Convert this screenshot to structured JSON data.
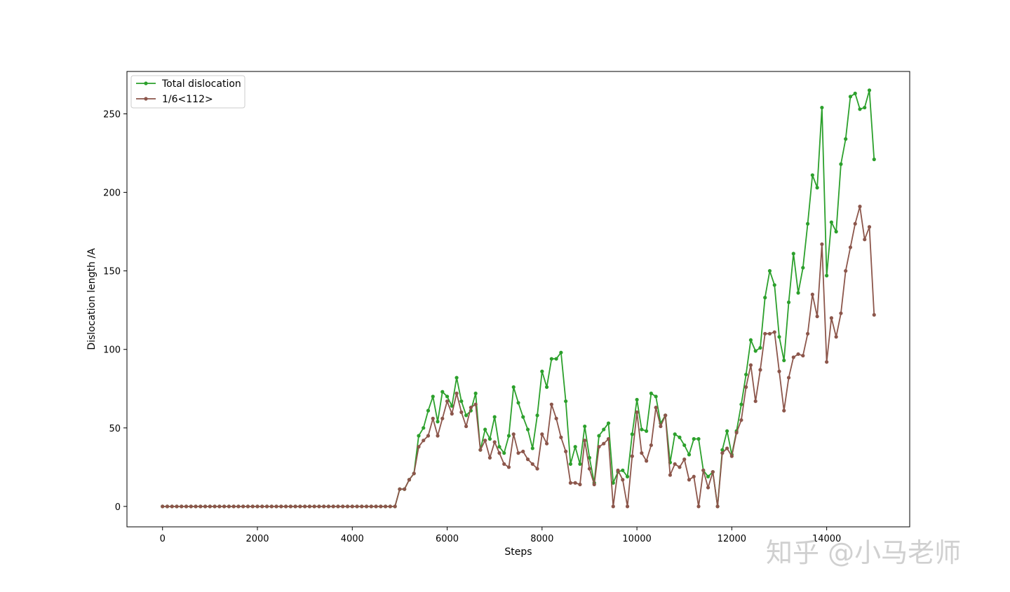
{
  "chart_data": {
    "type": "line",
    "xlabel": "Steps",
    "ylabel": "Dislocation length /A",
    "xlim": [
      -750,
      15750
    ],
    "ylim": [
      -13,
      277
    ],
    "xticks": [
      0,
      2000,
      4000,
      6000,
      8000,
      10000,
      12000,
      14000
    ],
    "xtick_labels": [
      "0",
      "2000",
      "4000",
      "6000",
      "8000",
      "10000",
      "12000",
      "14000"
    ],
    "yticks": [
      0,
      50,
      100,
      150,
      200,
      250
    ],
    "ytick_labels": [
      "0",
      "50",
      "100",
      "150",
      "200",
      "250"
    ],
    "grid": false,
    "legend_position": "top-left",
    "watermark": "知乎 @小马老师",
    "x": [
      0,
      100,
      200,
      300,
      400,
      500,
      600,
      700,
      800,
      900,
      1000,
      1100,
      1200,
      1300,
      1400,
      1500,
      1600,
      1700,
      1800,
      1900,
      2000,
      2100,
      2200,
      2300,
      2400,
      2500,
      2600,
      2700,
      2800,
      2900,
      3000,
      3100,
      3200,
      3300,
      3400,
      3500,
      3600,
      3700,
      3800,
      3900,
      4000,
      4100,
      4200,
      4300,
      4400,
      4500,
      4600,
      4700,
      4800,
      4900,
      5000,
      5100,
      5200,
      5300,
      5400,
      5500,
      5600,
      5700,
      5800,
      5900,
      6000,
      6100,
      6200,
      6300,
      6400,
      6500,
      6600,
      6700,
      6800,
      6900,
      7000,
      7100,
      7200,
      7300,
      7400,
      7500,
      7600,
      7700,
      7800,
      7900,
      8000,
      8100,
      8200,
      8300,
      8400,
      8500,
      8600,
      8700,
      8800,
      8900,
      9000,
      9100,
      9200,
      9300,
      9400,
      9500,
      9600,
      9700,
      9800,
      9900,
      10000,
      10100,
      10200,
      10300,
      10400,
      10500,
      10600,
      10700,
      10800,
      10900,
      11000,
      11100,
      11200,
      11300,
      11400,
      11500,
      11600,
      11700,
      11800,
      11900,
      12000,
      12100,
      12200,
      12300,
      12400,
      12500,
      12600,
      12700,
      12800,
      12900,
      13000,
      13100,
      13200,
      13300,
      13400,
      13500,
      13600,
      13700,
      13800,
      13900,
      14000,
      14100,
      14200,
      14300,
      14400,
      14500,
      14600,
      14700,
      14800,
      14900,
      15000
    ],
    "series": [
      {
        "name": "Total dislocation",
        "color": "#2ca02c",
        "values": [
          0,
          0,
          0,
          0,
          0,
          0,
          0,
          0,
          0,
          0,
          0,
          0,
          0,
          0,
          0,
          0,
          0,
          0,
          0,
          0,
          0,
          0,
          0,
          0,
          0,
          0,
          0,
          0,
          0,
          0,
          0,
          0,
          0,
          0,
          0,
          0,
          0,
          0,
          0,
          0,
          0,
          0,
          0,
          0,
          0,
          0,
          0,
          0,
          0,
          0,
          11,
          11,
          17,
          21,
          45,
          50,
          61,
          70,
          54,
          73,
          70,
          64,
          82,
          67,
          58,
          61,
          72,
          36,
          49,
          43,
          57,
          38,
          34,
          45,
          76,
          66,
          57,
          49,
          37,
          58,
          86,
          76,
          94,
          94,
          98,
          67,
          27,
          38,
          27,
          51,
          31,
          15,
          45,
          49,
          53,
          15,
          22,
          23,
          19,
          46,
          68,
          49,
          48,
          72,
          70,
          53,
          58,
          28,
          46,
          44,
          39,
          33,
          43,
          43,
          23,
          19,
          22,
          0,
          36,
          48,
          33,
          48,
          65,
          84,
          106,
          99,
          101,
          133,
          150,
          141,
          108,
          93,
          130,
          161,
          136,
          152,
          180,
          211,
          203,
          254,
          147,
          181,
          175,
          218,
          234,
          261,
          263,
          253,
          254,
          265,
          221
        ]
      },
      {
        "name": "1/6<112>",
        "color": "#8c564b",
        "values": [
          0,
          0,
          0,
          0,
          0,
          0,
          0,
          0,
          0,
          0,
          0,
          0,
          0,
          0,
          0,
          0,
          0,
          0,
          0,
          0,
          0,
          0,
          0,
          0,
          0,
          0,
          0,
          0,
          0,
          0,
          0,
          0,
          0,
          0,
          0,
          0,
          0,
          0,
          0,
          0,
          0,
          0,
          0,
          0,
          0,
          0,
          0,
          0,
          0,
          0,
          11,
          11,
          17,
          21,
          38,
          42,
          45,
          56,
          45,
          56,
          67,
          59,
          72,
          60,
          51,
          63,
          65,
          36,
          42,
          31,
          41,
          34,
          27,
          25,
          46,
          34,
          35,
          30,
          27,
          24,
          46,
          40,
          65,
          56,
          44,
          35,
          15,
          15,
          14,
          42,
          24,
          14,
          38,
          40,
          43,
          0,
          23,
          17,
          0,
          32,
          60,
          34,
          29,
          39,
          63,
          51,
          58,
          20,
          27,
          25,
          30,
          17,
          19,
          0,
          23,
          12,
          22,
          0,
          34,
          37,
          32,
          47,
          55,
          76,
          90,
          67,
          87,
          110,
          110,
          111,
          86,
          61,
          82,
          95,
          97,
          96,
          110,
          135,
          121,
          167,
          92,
          120,
          108,
          123,
          150,
          165,
          180,
          191,
          170,
          178,
          122
        ]
      }
    ]
  }
}
